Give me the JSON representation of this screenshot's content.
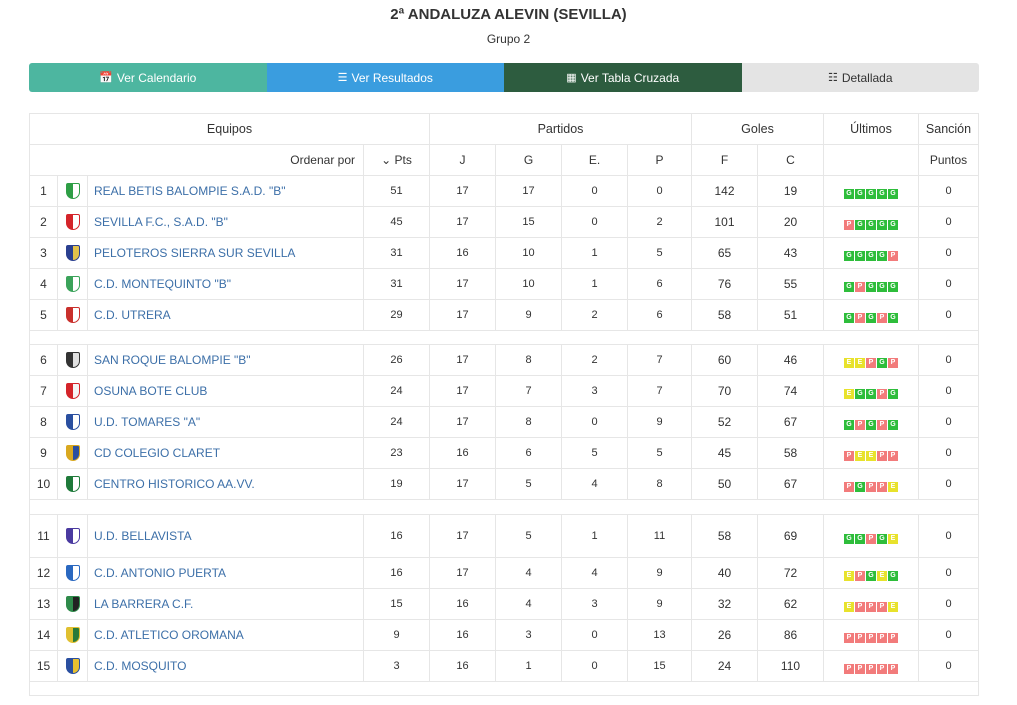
{
  "header": {
    "title": "2ª ANDALUZA ALEVIN (SEVILLA)",
    "subtitle": "Grupo 2"
  },
  "tabs": [
    {
      "label": "Ver Calendario",
      "icon": "calendar-icon"
    },
    {
      "label": "Ver Resultados",
      "icon": "list-icon"
    },
    {
      "label": "Ver Tabla Cruzada",
      "icon": "grid-icon"
    },
    {
      "label": "Detallada",
      "icon": "details-icon"
    }
  ],
  "table": {
    "groups": {
      "equipos": "Equipos",
      "partidos": "Partidos",
      "goles": "Goles",
      "ultimos": "Últimos",
      "sancion": "Sanción"
    },
    "columns": {
      "order_by": "Ordenar por",
      "pts": "Pts",
      "j": "J",
      "g": "G",
      "e": "E.",
      "p": "P",
      "f": "F",
      "c": "C",
      "puntos": "Puntos"
    },
    "rows": [
      {
        "pos": "1",
        "team": "REAL BETIS BALOMPIE S.A.D. \"B\"",
        "pts": "51",
        "j": "17",
        "g": "17",
        "e": "0",
        "p": "0",
        "f": "142",
        "c": "19",
        "form": [
          "G",
          "G",
          "G",
          "G",
          "G"
        ],
        "sancion": "0",
        "crest": [
          "#2e9e45",
          "#fff"
        ]
      },
      {
        "pos": "2",
        "team": "SEVILLA F.C., S.A.D. \"B\"",
        "pts": "45",
        "j": "17",
        "g": "15",
        "e": "0",
        "p": "2",
        "f": "101",
        "c": "20",
        "form": [
          "P",
          "G",
          "G",
          "G",
          "G"
        ],
        "sancion": "0",
        "crest": [
          "#d4242a",
          "#fff"
        ]
      },
      {
        "pos": "3",
        "team": "PELOTEROS SIERRA SUR SEVILLA",
        "pts": "31",
        "j": "16",
        "g": "10",
        "e": "1",
        "p": "5",
        "f": "65",
        "c": "43",
        "form": [
          "G",
          "G",
          "G",
          "G",
          "P"
        ],
        "sancion": "0",
        "crest": [
          "#2a3f8f",
          "#e3c24a"
        ]
      },
      {
        "pos": "4",
        "team": "C.D. MONTEQUINTO \"B\"",
        "pts": "31",
        "j": "17",
        "g": "10",
        "e": "1",
        "p": "6",
        "f": "76",
        "c": "55",
        "form": [
          "G",
          "P",
          "G",
          "G",
          "G"
        ],
        "sancion": "0",
        "crest": [
          "#3ba35a",
          "#fff"
        ]
      },
      {
        "pos": "5",
        "team": "C.D. UTRERA",
        "pts": "29",
        "j": "17",
        "g": "9",
        "e": "2",
        "p": "6",
        "f": "58",
        "c": "51",
        "form": [
          "G",
          "P",
          "G",
          "P",
          "G"
        ],
        "sancion": "0",
        "crest": [
          "#c9302c",
          "#fff"
        ]
      },
      {
        "pos": "6",
        "team": "SAN ROQUE BALOMPIE \"B\"",
        "pts": "26",
        "j": "17",
        "g": "8",
        "e": "2",
        "p": "7",
        "f": "60",
        "c": "46",
        "form": [
          "E",
          "E",
          "P",
          "G",
          "P"
        ],
        "sancion": "0",
        "crest": [
          "#333",
          "#e0e0e0"
        ]
      },
      {
        "pos": "7",
        "team": "OSUNA BOTE CLUB",
        "pts": "24",
        "j": "17",
        "g": "7",
        "e": "3",
        "p": "7",
        "f": "70",
        "c": "74",
        "form": [
          "E",
          "G",
          "G",
          "P",
          "G"
        ],
        "sancion": "0",
        "crest": [
          "#d4242a",
          "#f5f5f5"
        ]
      },
      {
        "pos": "8",
        "team": "U.D. TOMARES \"A\"",
        "pts": "24",
        "j": "17",
        "g": "8",
        "e": "0",
        "p": "9",
        "f": "52",
        "c": "67",
        "form": [
          "G",
          "P",
          "G",
          "P",
          "G"
        ],
        "sancion": "0",
        "crest": [
          "#2a4fa0",
          "#fff"
        ]
      },
      {
        "pos": "9",
        "team": "CD COLEGIO CLARET",
        "pts": "23",
        "j": "16",
        "g": "6",
        "e": "5",
        "p": "5",
        "f": "45",
        "c": "58",
        "form": [
          "P",
          "E",
          "E",
          "P",
          "P"
        ],
        "sancion": "0",
        "crest": [
          "#d9a820",
          "#2a4fa0"
        ]
      },
      {
        "pos": "10",
        "team": "CENTRO HISTORICO AA.VV.",
        "pts": "19",
        "j": "17",
        "g": "5",
        "e": "4",
        "p": "8",
        "f": "50",
        "c": "67",
        "form": [
          "P",
          "G",
          "P",
          "P",
          "E"
        ],
        "sancion": "0",
        "crest": [
          "#1f7a3a",
          "#fff"
        ]
      },
      {
        "pos": "11",
        "team": "U.D. BELLAVISTA",
        "pts": "16",
        "j": "17",
        "g": "5",
        "e": "1",
        "p": "11",
        "f": "58",
        "c": "69",
        "form": [
          "G",
          "G",
          "P",
          "G",
          "E"
        ],
        "sancion": "0",
        "crest": [
          "#4a3aa0",
          "#fff"
        ]
      },
      {
        "pos": "12",
        "team": "C.D. ANTONIO PUERTA",
        "pts": "16",
        "j": "17",
        "g": "4",
        "e": "4",
        "p": "9",
        "f": "40",
        "c": "72",
        "form": [
          "E",
          "P",
          "G",
          "E",
          "G"
        ],
        "sancion": "0",
        "crest": [
          "#2a68c0",
          "#fff"
        ]
      },
      {
        "pos": "13",
        "team": "LA BARRERA C.F.",
        "pts": "15",
        "j": "16",
        "g": "4",
        "e": "3",
        "p": "9",
        "f": "32",
        "c": "62",
        "form": [
          "E",
          "P",
          "P",
          "P",
          "E"
        ],
        "sancion": "0",
        "crest": [
          "#2e8a4a",
          "#222"
        ]
      },
      {
        "pos": "14",
        "team": "C.D. ATLETICO OROMANA",
        "pts": "9",
        "j": "16",
        "g": "3",
        "e": "0",
        "p": "13",
        "f": "26",
        "c": "86",
        "form": [
          "P",
          "P",
          "P",
          "P",
          "P"
        ],
        "sancion": "0",
        "crest": [
          "#e0c030",
          "#2a7a3a"
        ]
      },
      {
        "pos": "15",
        "team": "C.D. MOSQUITO",
        "pts": "3",
        "j": "16",
        "g": "1",
        "e": "0",
        "p": "15",
        "f": "24",
        "c": "110",
        "form": [
          "P",
          "P",
          "P",
          "P",
          "P"
        ],
        "sancion": "0",
        "crest": [
          "#2a4fa0",
          "#e8c030"
        ]
      }
    ]
  }
}
